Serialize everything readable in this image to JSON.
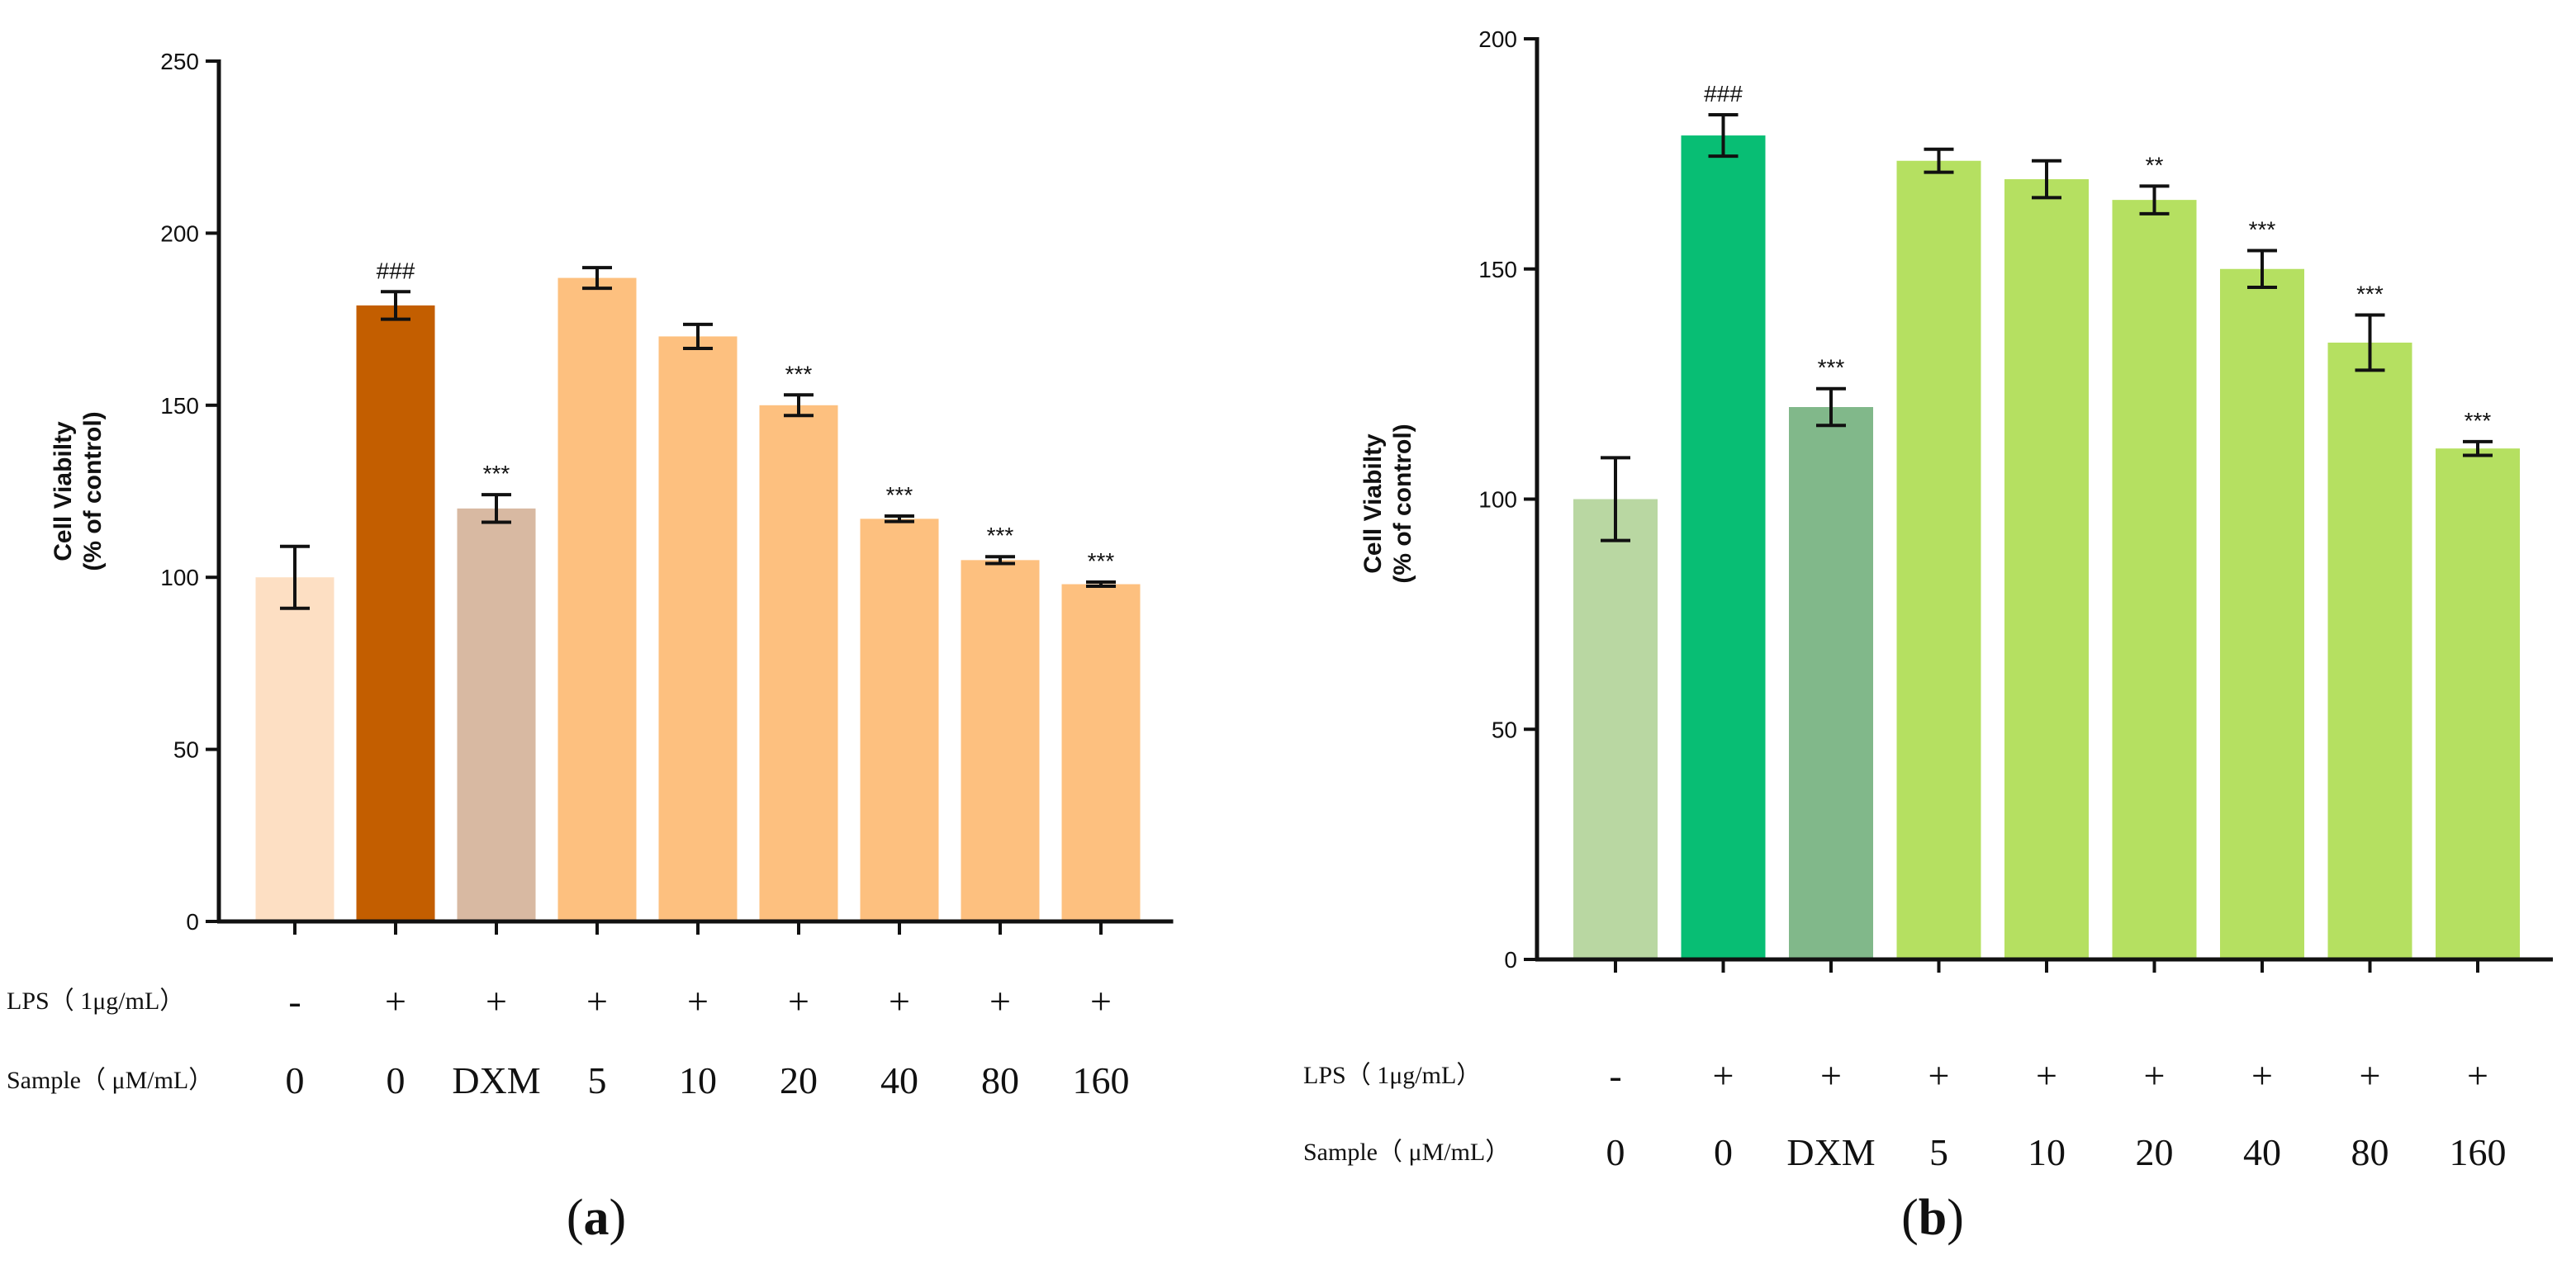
{
  "chart_data": [
    {
      "type": "bar",
      "panel_label": "a",
      "ylabel_line1": "Cell Viabilty",
      "ylabel_line2": "(% of control)",
      "ylim": [
        0,
        250
      ],
      "yticks": [
        "0",
        "50",
        "100",
        "150",
        "200",
        "250"
      ],
      "categories": [
        "0",
        "0",
        "DXM",
        "5",
        "10",
        "20",
        "40",
        "80",
        "160"
      ],
      "values": [
        100,
        179,
        120,
        187,
        170,
        150,
        117,
        105,
        98
      ],
      "errors": [
        9,
        4,
        4,
        3,
        3.5,
        3,
        0.8,
        1,
        0.6
      ],
      "significance": [
        "",
        "###",
        "***",
        "",
        "",
        "***",
        "***",
        "***",
        "***"
      ],
      "colors": [
        "#FDDFC3",
        "#C35E00",
        "#D8B9A2",
        "#FDC07F",
        "#FDC07F",
        "#FDC07F",
        "#FDC07F",
        "#FDC07F",
        "#FDC07F"
      ],
      "lps_label": "LPS（ 1μg/mL）",
      "lps_values": [
        "-",
        "+",
        "+",
        "+",
        "+",
        "+",
        "+",
        "+",
        "+"
      ],
      "sample_label": "Sample（ μM/mL）"
    },
    {
      "type": "bar",
      "panel_label": "b",
      "ylabel_line1": "Cell Viabilty",
      "ylabel_line2": "(% of control)",
      "ylim": [
        0,
        200
      ],
      "yticks": [
        "0",
        "50",
        "100",
        "150",
        "200"
      ],
      "categories": [
        "0",
        "0",
        "DXM",
        "5",
        "10",
        "20",
        "40",
        "80",
        "160"
      ],
      "values": [
        100,
        179,
        120,
        173.5,
        169.5,
        165,
        150,
        134,
        111
      ],
      "errors": [
        9,
        4.5,
        4,
        2.5,
        4,
        3,
        4,
        6,
        1.5
      ],
      "significance": [
        "",
        "###",
        "***",
        "",
        "",
        "**",
        "***",
        "***",
        "***"
      ],
      "colors": [
        "#B9D7A2",
        "#08BE74",
        "#81B88A",
        "#B5E061",
        "#B5E061",
        "#B5E061",
        "#B5E061",
        "#B5E061",
        "#B5E061"
      ],
      "lps_label": "LPS（ 1μg/mL）",
      "lps_values": [
        "-",
        "+",
        "+",
        "+",
        "+",
        "+",
        "+",
        "+",
        "+"
      ],
      "sample_label": "Sample（ μM/mL）"
    }
  ]
}
